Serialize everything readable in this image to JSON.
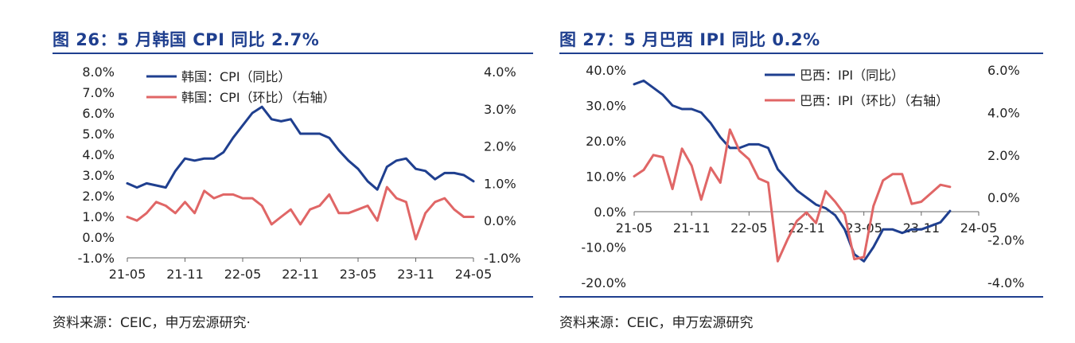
{
  "charts": [
    {
      "title": "图 26：5 月韩国 CPI 同比 2.7%",
      "source": "资料来源：CEIC，申万宏源研究·",
      "left_axis": {
        "min": -1,
        "max": 8,
        "step": 1,
        "ticks": [
          "8.0%",
          "7.0%",
          "6.0%",
          "5.0%",
          "4.0%",
          "3.0%",
          "2.0%",
          "1.0%",
          "0.0%",
          "-1.0%"
        ]
      },
      "right_axis": {
        "min": -1,
        "max": 4,
        "step": 1,
        "ticks": [
          "4.0%",
          "3.0%",
          "2.0%",
          "1.0%",
          "0.0%",
          "-1.0%"
        ]
      },
      "x_tick_labels": [
        "21-05",
        "21-11",
        "22-05",
        "22-11",
        "23-05",
        "23-11",
        "24-05"
      ],
      "series": [
        {
          "name": "韩国：CPI（同比）",
          "axis": "left",
          "color": "#1f3f8f",
          "values": [
            2.6,
            2.4,
            2.6,
            2.5,
            2.4,
            3.2,
            3.8,
            3.7,
            3.8,
            3.8,
            4.1,
            4.8,
            5.4,
            6.0,
            6.3,
            5.7,
            5.6,
            5.7,
            5.0,
            5.0,
            5.0,
            4.8,
            4.2,
            3.7,
            3.3,
            2.7,
            2.3,
            3.4,
            3.7,
            3.8,
            3.3,
            3.2,
            2.8,
            3.1,
            3.1,
            3.0,
            2.7
          ]
        },
        {
          "name": "韩国：CPI（环比）（右轴）",
          "axis": "right",
          "color": "#e06666",
          "values": [
            0.1,
            0.0,
            0.2,
            0.5,
            0.4,
            0.2,
            0.5,
            0.2,
            0.8,
            0.6,
            0.7,
            0.7,
            0.6,
            0.6,
            0.4,
            -0.1,
            0.1,
            0.3,
            -0.1,
            0.3,
            0.4,
            0.7,
            0.2,
            0.2,
            0.3,
            0.4,
            0.0,
            0.9,
            0.6,
            0.5,
            -0.5,
            0.2,
            0.5,
            0.6,
            0.3,
            0.1,
            0.1
          ]
        }
      ]
    },
    {
      "title": "图 27：5 月巴西 IPI 同比 0.2%",
      "source": "资料来源：CEIC，申万宏源研究",
      "left_axis": {
        "min": -20,
        "max": 40,
        "step": 10,
        "ticks": [
          "40.0%",
          "30.0%",
          "20.0%",
          "10.0%",
          "0.0%",
          "-10.0%",
          "-20.0%"
        ]
      },
      "right_axis": {
        "min": -4,
        "max": 6,
        "step": 2,
        "ticks": [
          "6.0%",
          "4.0%",
          "2.0%",
          "0.0%",
          "-2.0%",
          "-4.0%"
        ]
      },
      "x_tick_labels": [
        "21-05",
        "21-11",
        "22-05",
        "22-11",
        "23-05",
        "23-11",
        "24-05"
      ],
      "series": [
        {
          "name": "巴西：IPI（同比）",
          "axis": "left",
          "color": "#1f3f8f",
          "values": [
            36,
            37,
            35,
            33,
            30,
            29,
            29,
            28,
            25,
            21,
            18,
            18,
            19,
            19,
            18,
            12,
            9,
            6,
            4,
            2,
            1,
            -1,
            -5,
            -12,
            -14,
            -10,
            -5,
            -5,
            -6,
            -5,
            -5,
            -4,
            -3,
            0.2
          ]
        },
        {
          "name": "巴西：IPI（环比）（右轴）",
          "axis": "right",
          "color": "#e06666",
          "values": [
            1.0,
            1.3,
            2.0,
            1.9,
            0.4,
            2.3,
            1.5,
            -0.1,
            1.4,
            0.7,
            3.2,
            2.2,
            1.8,
            0.9,
            0.7,
            -3.0,
            -2.0,
            -1.1,
            -0.7,
            -1.2,
            0.3,
            -0.2,
            -0.8,
            -2.9,
            -2.8,
            -0.4,
            0.8,
            1.1,
            1.1,
            -0.3,
            -0.2,
            0.2,
            0.6,
            0.5
          ]
        }
      ]
    }
  ]
}
